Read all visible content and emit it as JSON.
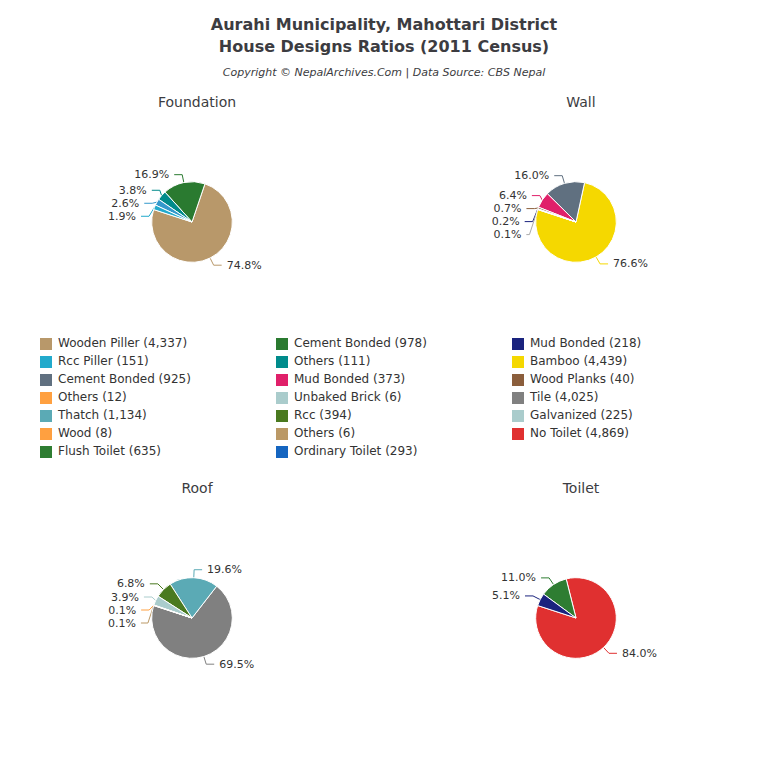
{
  "title": "Aurahi Municipality, Mahottari District\nHouse Designs Ratios (2011 Census)",
  "subtitle": "Copyright © NepalArchives.Com | Data Source: CBS Nepal",
  "chart_data": [
    {
      "type": "pie",
      "title": "Foundation",
      "values": [
        74.8,
        16.9,
        3.8,
        2.6,
        1.9
      ],
      "value_labels": [
        "74.8%",
        "16.9%",
        "3.8%",
        "2.6%",
        "1.9%"
      ],
      "colors": [
        "#b8986a",
        "#2a7a30",
        "#008b8b",
        "#3399cc",
        "#22aacc"
      ]
    },
    {
      "type": "pie",
      "title": "Wall",
      "values": [
        76.6,
        16.0,
        6.4,
        0.7,
        0.2,
        0.1
      ],
      "value_labels": [
        "76.6%",
        "16.0%",
        "6.4%",
        "0.7%",
        "0.2%",
        "0.1%"
      ],
      "colors": [
        "#f5d800",
        "#607080",
        "#e0206a",
        "#8b5e3c",
        "#1a237e",
        "#aaaaaa"
      ]
    },
    {
      "type": "pie",
      "title": "Roof",
      "values": [
        69.5,
        19.6,
        6.8,
        3.9,
        0.1,
        0.1
      ],
      "value_labels": [
        "69.5%",
        "19.6%",
        "6.8%",
        "3.9%",
        "0.1%",
        "0.1%"
      ],
      "colors": [
        "#808080",
        "#5baab5",
        "#4a7a20",
        "#aacccc",
        "#ffa040",
        "#bb9966"
      ]
    },
    {
      "type": "pie",
      "title": "Toilet",
      "values": [
        84.0,
        11.0,
        5.1
      ],
      "value_labels": [
        "84.0%",
        "11.0%",
        "5.1%"
      ],
      "colors": [
        "#e03030",
        "#2e7d32",
        "#1a237e"
      ]
    }
  ],
  "legend_items": [
    {
      "label": "Wooden Piller (4,337)",
      "color": "#b8986a"
    },
    {
      "label": "Cement Bonded (978)",
      "color": "#2a7a30"
    },
    {
      "label": "Mud Bonded (218)",
      "color": "#1a237e"
    },
    {
      "label": "Rcc Piller (151)",
      "color": "#22aacc"
    },
    {
      "label": "Others (111)",
      "color": "#008b8b"
    },
    {
      "label": "Bamboo (4,439)",
      "color": "#f5d800"
    },
    {
      "label": "Cement Bonded (925)",
      "color": "#607080"
    },
    {
      "label": "Mud Bonded (373)",
      "color": "#e0206a"
    },
    {
      "label": "Wood Planks (40)",
      "color": "#8b5e3c"
    },
    {
      "label": "Others (12)",
      "color": "#ffa040"
    },
    {
      "label": "Unbaked Brick (6)",
      "color": "#aacccc"
    },
    {
      "label": "Tile (4,025)",
      "color": "#808080"
    },
    {
      "label": "Thatch (1,134)",
      "color": "#5baab5"
    },
    {
      "label": "Rcc (394)",
      "color": "#4a7a20"
    },
    {
      "label": "Galvanized (225)",
      "color": "#aacccc"
    },
    {
      "label": "Wood (8)",
      "color": "#ffa040"
    },
    {
      "label": "Others (6)",
      "color": "#bb9966"
    },
    {
      "label": "No Toilet (4,869)",
      "color": "#e03030"
    },
    {
      "label": "Flush Toilet (635)",
      "color": "#2e7d32"
    },
    {
      "label": "Ordinary Toilet (293)",
      "color": "#1565c0"
    }
  ]
}
